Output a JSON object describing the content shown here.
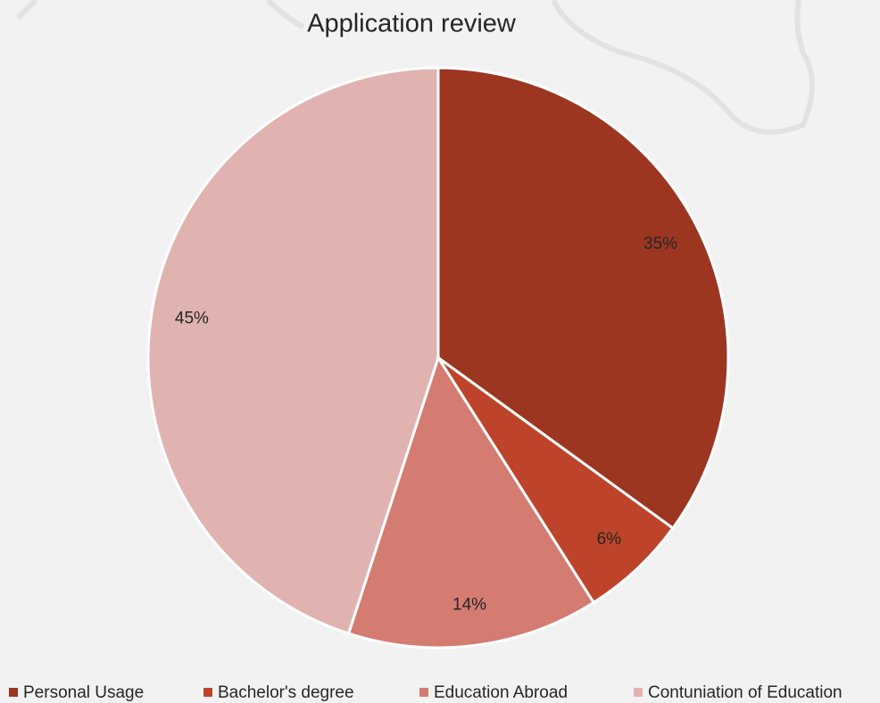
{
  "chart_data": {
    "type": "pie",
    "title": "Application review",
    "categories": [
      "Personal Usage",
      "Bachelor's degree",
      "Education Abroad",
      "Contuniation of Education"
    ],
    "values": [
      35,
      6,
      14,
      45
    ],
    "value_labels": [
      "35%",
      "6%",
      "14%",
      "45%"
    ],
    "colors": [
      "#9c3620",
      "#bd442a",
      "#d47b72",
      "#e1b3b0"
    ],
    "legend": "bottom"
  }
}
